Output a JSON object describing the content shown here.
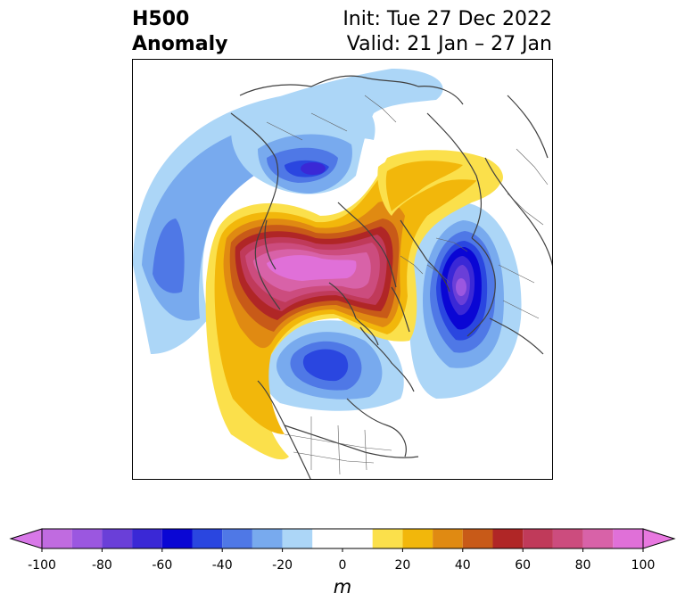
{
  "title": {
    "field_line1": "H500",
    "field_line2": "Anomaly",
    "init": "Init: Tue 27 Dec 2022",
    "valid": "Valid: 21 Jan – 27 Jan"
  },
  "colorbar": {
    "unit": "m",
    "tick_labels": [
      "-100",
      "-80",
      "-60",
      "-40",
      "-20",
      "0",
      "20",
      "40",
      "60",
      "80",
      "100"
    ],
    "levels": [
      -100,
      -90,
      -80,
      -70,
      -60,
      -50,
      -40,
      -30,
      -20,
      -10,
      10,
      20,
      30,
      40,
      50,
      60,
      70,
      80,
      90,
      100
    ],
    "bins": [
      {
        "from": -100,
        "to": -90,
        "color": "#c06be0"
      },
      {
        "from": -90,
        "to": -80,
        "color": "#9b57e0"
      },
      {
        "from": -80,
        "to": -70,
        "color": "#6a3fd8"
      },
      {
        "from": -70,
        "to": -60,
        "color": "#3a28d6"
      },
      {
        "from": -60,
        "to": -50,
        "color": "#0a06d4"
      },
      {
        "from": -50,
        "to": -40,
        "color": "#2a46e0"
      },
      {
        "from": -40,
        "to": -30,
        "color": "#4f78e6"
      },
      {
        "from": -30,
        "to": -20,
        "color": "#78aaee"
      },
      {
        "from": -20,
        "to": -10,
        "color": "#acd6f7"
      },
      {
        "from": -10,
        "to": 10,
        "color": "#ffffff"
      },
      {
        "from": 10,
        "to": 20,
        "color": "#fbe04b"
      },
      {
        "from": 20,
        "to": 30,
        "color": "#f2b70b"
      },
      {
        "from": 30,
        "to": 40,
        "color": "#e08a12"
      },
      {
        "from": 40,
        "to": 50,
        "color": "#c85a18"
      },
      {
        "from": 50,
        "to": 60,
        "color": "#b02626"
      },
      {
        "from": 60,
        "to": 70,
        "color": "#c03a5a"
      },
      {
        "from": 70,
        "to": 80,
        "color": "#cc4c7e"
      },
      {
        "from": 80,
        "to": 90,
        "color": "#d862a8"
      },
      {
        "from": 90,
        "to": 100,
        "color": "#e070d8"
      }
    ],
    "under_color": "#d878e8",
    "over_color": "#e878e0",
    "extend": "both"
  },
  "map": {
    "projection": "north-polar-stereographic",
    "coastline_color": "#404040"
  }
}
